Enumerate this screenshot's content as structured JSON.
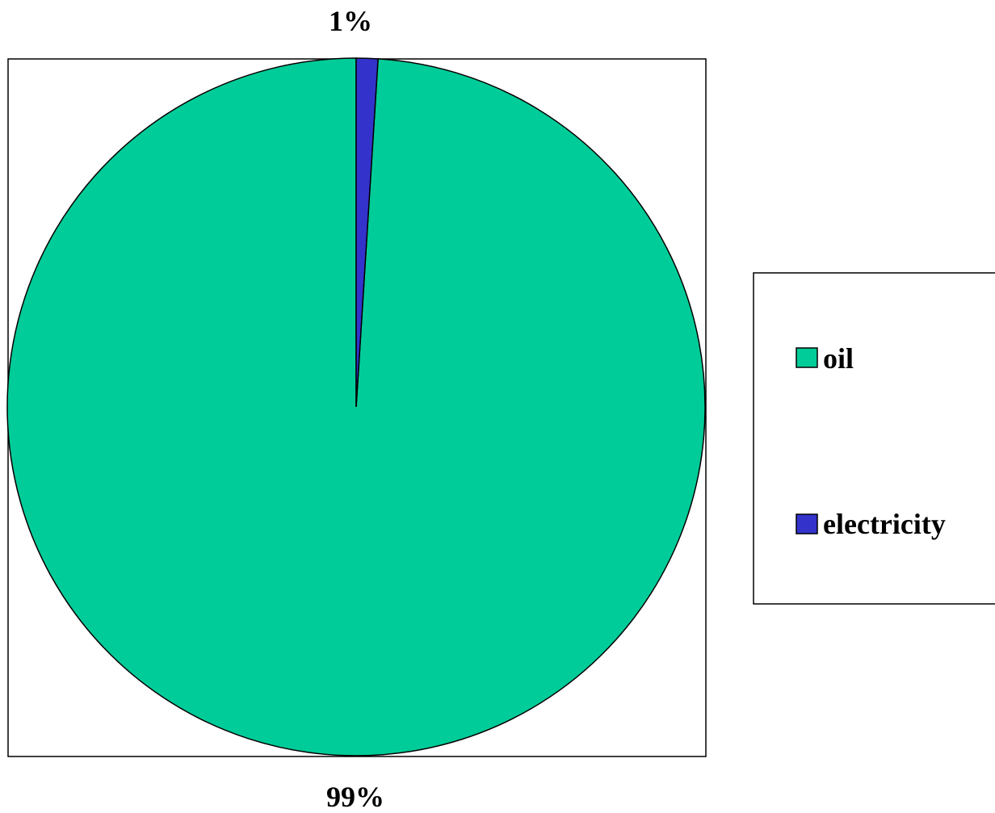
{
  "chart_data": {
    "type": "pie",
    "categories": [
      "oil",
      "electricity"
    ],
    "values": [
      99,
      1
    ],
    "data_labels": [
      "99%",
      "1%"
    ],
    "colors": [
      "#00CC99",
      "#3333CC"
    ],
    "start_angle_deg": 0,
    "direction": "counterclockwise",
    "legend_position": "right"
  }
}
